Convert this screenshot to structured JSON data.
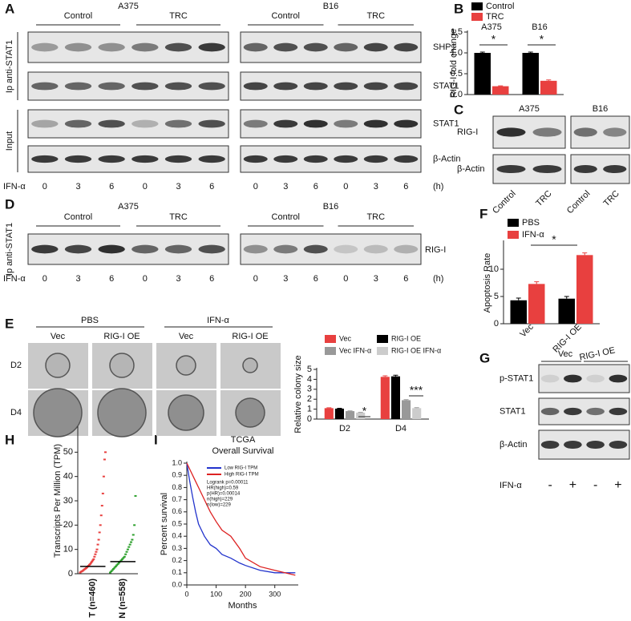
{
  "panel_letters": [
    "A",
    "B",
    "C",
    "D",
    "E",
    "F",
    "G",
    "H",
    "I"
  ],
  "blot_a": {
    "cell_lines": [
      "A375",
      "B16"
    ],
    "groups": [
      "Control",
      "TRC"
    ],
    "ip_label": "Ip anti-STAT1",
    "input_label": "Input",
    "proteins": [
      "SHP1",
      "STAT1",
      "STAT1",
      "β-Actin"
    ],
    "treatment": "IFN-α",
    "times": [
      "0",
      "3",
      "6",
      "0",
      "3",
      "6"
    ],
    "unit": "(h)"
  },
  "blot_c": {
    "cell_lines": [
      "A375",
      "B16"
    ],
    "proteins": [
      "RIG-I",
      "β-Actin"
    ],
    "lanes": [
      "Control",
      "TRC",
      "Control",
      "TRC"
    ]
  },
  "blot_d": {
    "cell_lines": [
      "A375",
      "B16"
    ],
    "groups": [
      "Control",
      "TRC"
    ],
    "ip_label": "Ip anti-STAT1",
    "protein": "RIG-I",
    "treatment": "IFN-α",
    "times": [
      "0",
      "3",
      "6",
      "0",
      "3",
      "6"
    ],
    "unit": "(h)"
  },
  "images_e": {
    "treatments": [
      "PBS",
      "IFN-α"
    ],
    "columns": [
      "Vec",
      "RIG-I OE",
      "Vec",
      "RIG-I OE"
    ],
    "rows": [
      "D2",
      "D4"
    ]
  },
  "blot_g": {
    "columns": [
      "Vec",
      "RIG-I OE"
    ],
    "proteins": [
      "p-STAT1",
      "STAT1",
      "β-Actin"
    ],
    "treatment": "IFN-α",
    "signs": [
      "-",
      "+",
      "-",
      "+"
    ]
  },
  "chart_data": [
    {
      "type": "bar",
      "y_label": "RIG-I fold change",
      "categories": [
        "A375",
        "B16"
      ],
      "series": [
        {
          "name": "Control",
          "color": "#000000",
          "values": [
            1.0,
            1.0
          ],
          "errors": [
            0.02,
            0.02
          ]
        },
        {
          "name": "TRC",
          "color": "#e8403f",
          "values": [
            0.2,
            0.33
          ],
          "errors": [
            0.01,
            0.02
          ]
        }
      ],
      "ylim": [
        0,
        1.5
      ],
      "yticks": [
        {
          "value": 0,
          "label": "0.0"
        },
        0.5,
        {
          "value": 1,
          "label": "1.0"
        },
        1.5
      ],
      "annotations": [
        "*",
        "*"
      ]
    },
    {
      "type": "bar",
      "y_label": "Apoptosis Rate",
      "categories": [
        "Vec",
        "RIG-I OE"
      ],
      "series": [
        {
          "name": "PBS",
          "color": "#000000",
          "values": [
            4.3,
            4.6
          ],
          "errors": [
            0.4,
            0.4
          ]
        },
        {
          "name": "IFN-α",
          "color": "#e8403f",
          "values": [
            7.3,
            12.6
          ],
          "errors": [
            0.4,
            0.4
          ]
        }
      ],
      "ylim": [
        0,
        15
      ],
      "yticks": [
        0,
        5,
        10
      ],
      "annotations": [
        "*"
      ]
    },
    {
      "type": "bar",
      "y_label": "Relative colony size",
      "categories": [
        "D2",
        "D4"
      ],
      "series": [
        {
          "name": "Vec",
          "color": "#e8403f",
          "values": [
            1.1,
            4.25
          ],
          "errors": [
            0.04,
            0.1
          ]
        },
        {
          "name": "RIG-I OE",
          "color": "#000000",
          "values": [
            1.05,
            4.3
          ],
          "errors": [
            0.04,
            0.12
          ]
        },
        {
          "name": "Vec IFN-α",
          "color": "#999999",
          "values": [
            0.8,
            1.9
          ],
          "errors": [
            0.03,
            0.06
          ]
        },
        {
          "name": "RIG-I OE IFN-α",
          "color": "#cccccc",
          "values": [
            0.65,
            1.1
          ],
          "errors": [
            0.03,
            0.05
          ]
        }
      ],
      "ylim": [
        0,
        5
      ],
      "yticks": [
        0,
        1,
        2,
        3,
        4,
        5
      ],
      "annotations": [
        "*",
        "***"
      ]
    },
    {
      "type": "strip",
      "y_label": "Transcripts Per Million (TPM)",
      "categories": [
        "T (n=460)",
        "N (n=558)"
      ],
      "series": [
        {
          "color": "#e8403f",
          "values": [
            0.5,
            0.8,
            1,
            1.2,
            1.5,
            1.8,
            2,
            2.3,
            2.6,
            3,
            3.3,
            3.7,
            4,
            4.5,
            5,
            5.5,
            6,
            7,
            8,
            9,
            10,
            12,
            14,
            17,
            20,
            24,
            28,
            33,
            40,
            47,
            50
          ]
        },
        {
          "color": "#2ca02c",
          "values": [
            0.5,
            1,
            1.5,
            2,
            2.5,
            3,
            3.5,
            4,
            4.5,
            5,
            5.5,
            6,
            6.5,
            7,
            8,
            9,
            10,
            11,
            12,
            13,
            14,
            16,
            20,
            32
          ]
        }
      ],
      "medians": [
        3,
        5
      ],
      "ylim": [
        0,
        60
      ],
      "yticks": [
        0,
        10,
        20,
        30,
        40,
        50
      ]
    },
    {
      "type": "line",
      "title": "TCGA",
      "subtitle": "Overall Survival",
      "x_label": "Months",
      "y_label": "Percent survival",
      "series": [
        {
          "name": "Low RIG-I TPM",
          "color": "#2233cc",
          "x": [
            0,
            10,
            20,
            30,
            40,
            50,
            60,
            80,
            100,
            120,
            150,
            180,
            200,
            250,
            300,
            370
          ],
          "values": [
            1.0,
            0.85,
            0.72,
            0.6,
            0.5,
            0.45,
            0.4,
            0.33,
            0.3,
            0.25,
            0.22,
            0.18,
            0.16,
            0.12,
            0.1,
            0.1
          ]
        },
        {
          "name": "High RIG-I TPM",
          "color": "#dd2222",
          "x": [
            0,
            10,
            20,
            30,
            40,
            60,
            80,
            100,
            120,
            150,
            180,
            200,
            250,
            300,
            370
          ],
          "values": [
            1.0,
            0.95,
            0.9,
            0.85,
            0.8,
            0.7,
            0.6,
            0.52,
            0.45,
            0.4,
            0.3,
            0.22,
            0.15,
            0.12,
            0.08
          ]
        }
      ],
      "stats": [
        "Logrank p=0.00011",
        "HR(high)=0.59",
        "p(HR)=0.00014",
        "n(high)=229",
        "n(low)=229"
      ],
      "xlim": [
        0,
        380
      ],
      "xticks": [
        0,
        100,
        200,
        300
      ],
      "ylim": [
        0,
        1
      ],
      "yticks": [
        {
          "value": 0,
          "label": "0.0"
        },
        0.1,
        0.2,
        0.3,
        0.4,
        0.5,
        0.6,
        0.7,
        0.8,
        0.9,
        {
          "value": 1,
          "label": "1.0"
        }
      ]
    }
  ]
}
